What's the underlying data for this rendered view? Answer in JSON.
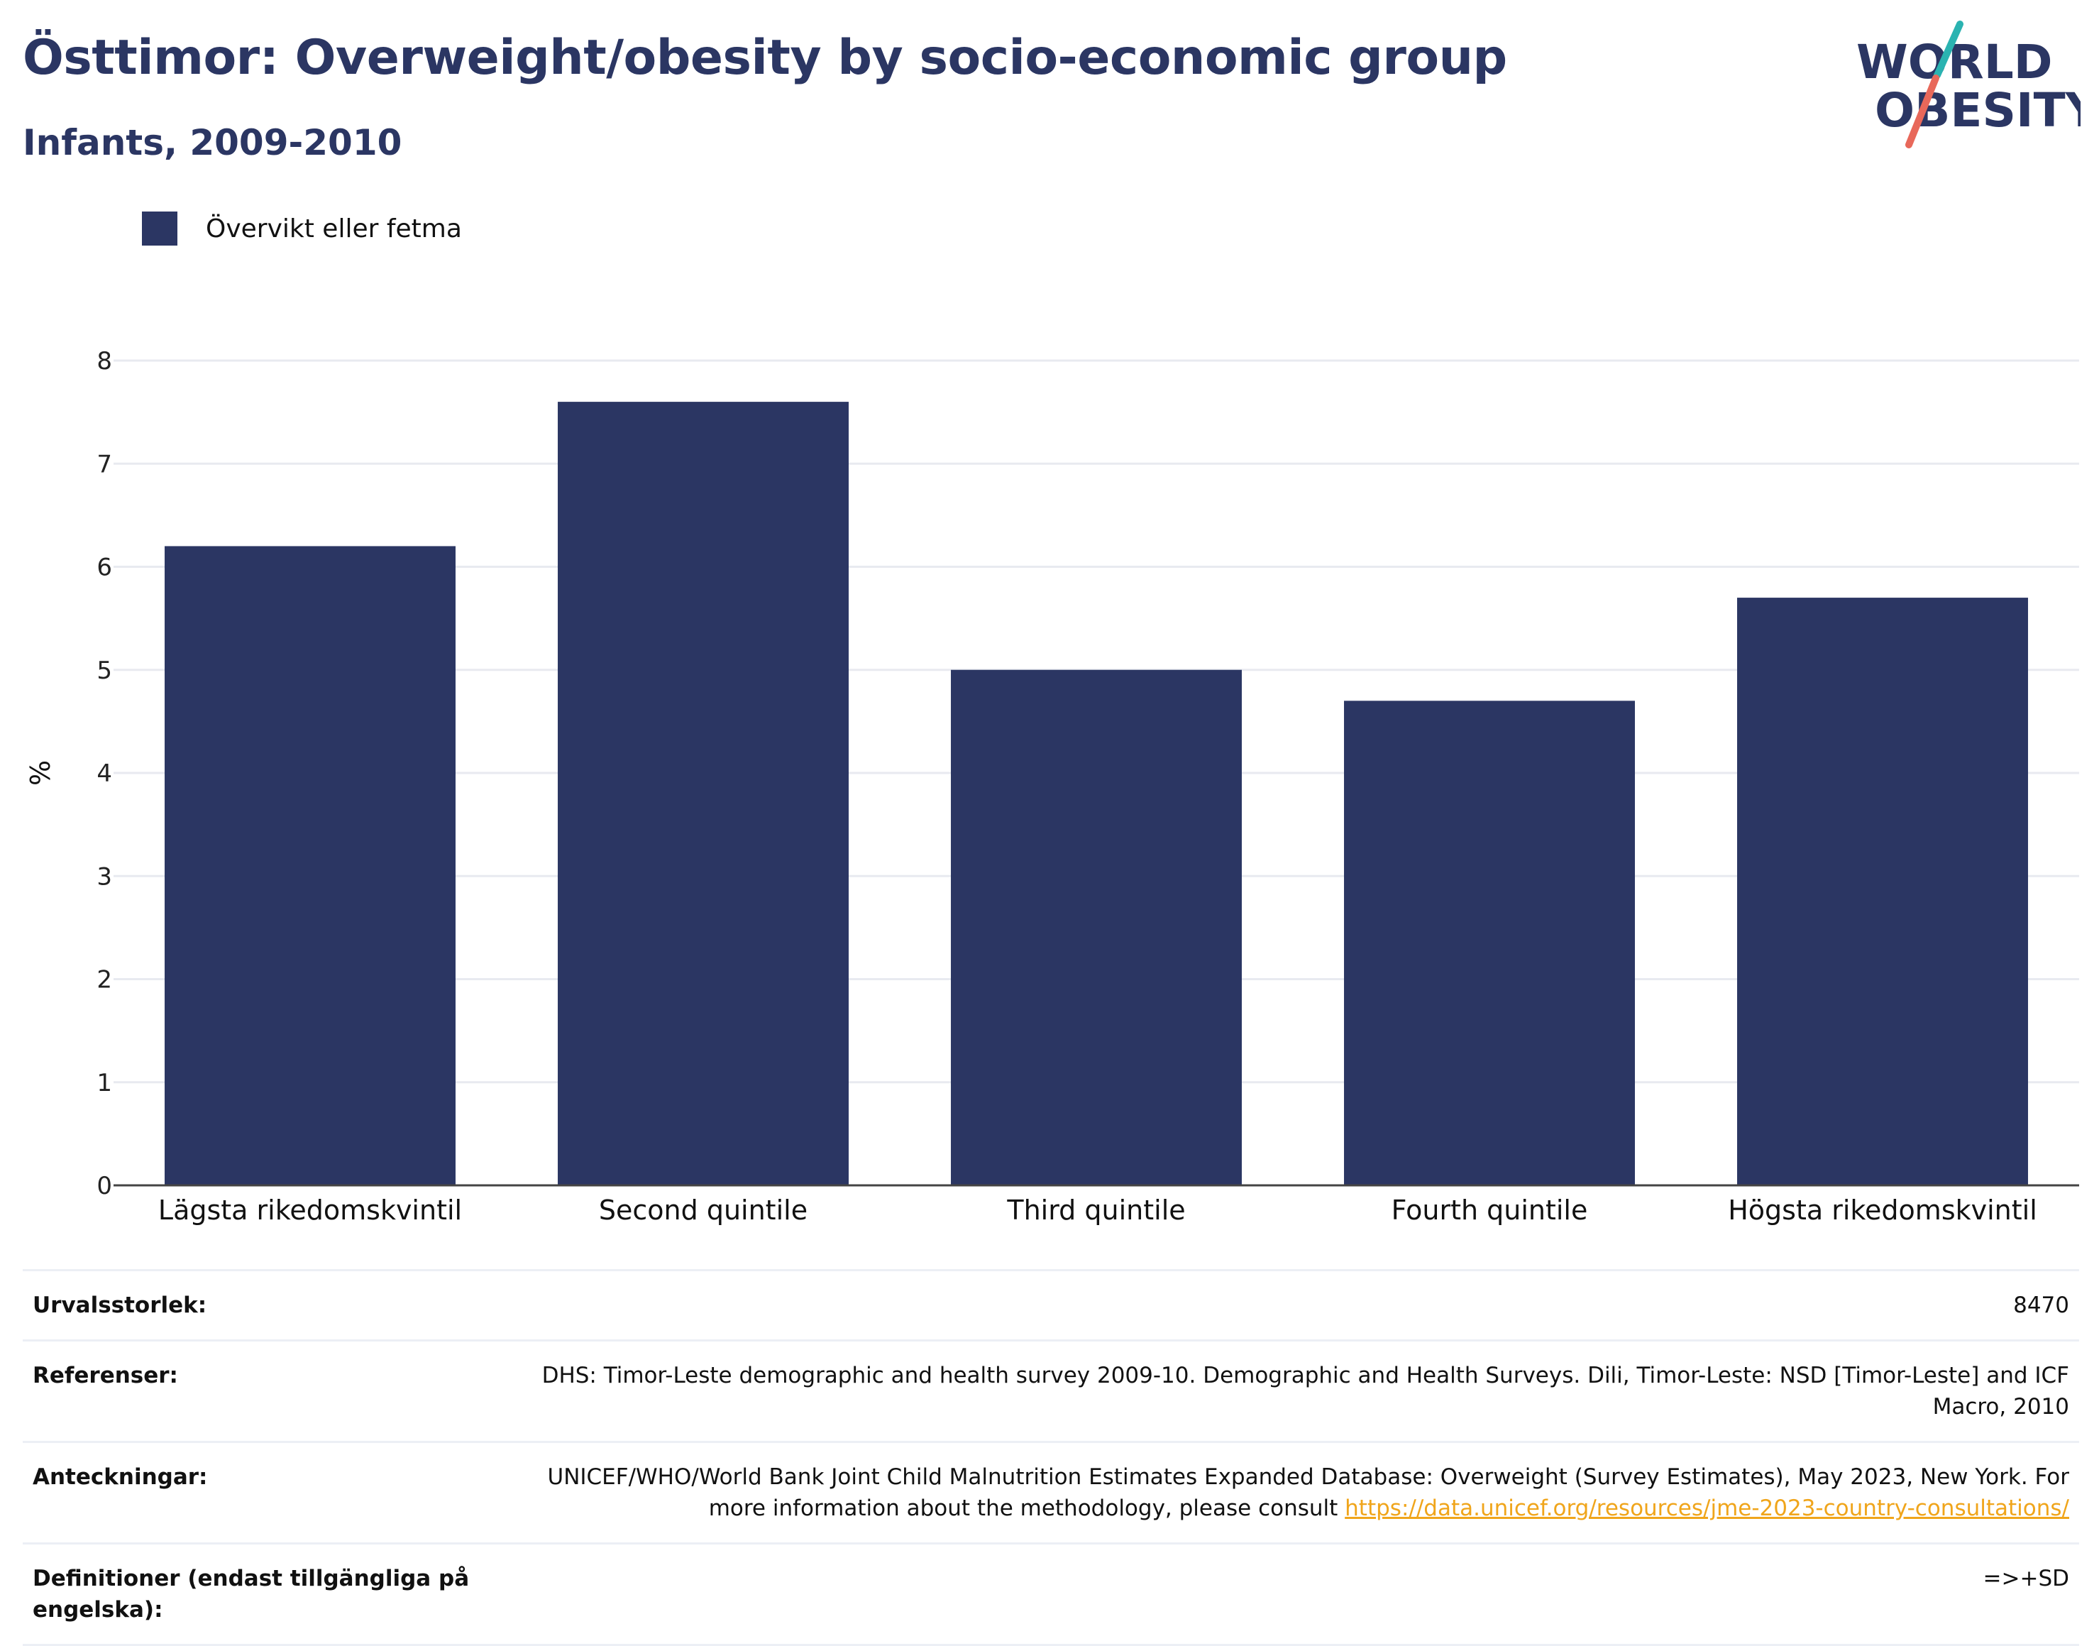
{
  "header": {
    "title": "Östtimor: Overweight/obesity by socio-economic group",
    "subtitle": "Infants, 2009-2010"
  },
  "logo": {
    "line1": "WORLD",
    "line2": "OBESITY",
    "colors": {
      "text": "#2b3663",
      "slash_teal": "#2ab3b1",
      "slash_coral": "#e8685a"
    }
  },
  "colors": {
    "bar": "#2b3663",
    "grid": "#e8eaf0",
    "axis": "#444444",
    "link": "#f0a51b"
  },
  "chart_data": {
    "type": "bar",
    "categories": [
      "Lägsta rikedomskvintil",
      "Second quintile",
      "Third quintile",
      "Fourth quintile",
      "Högsta rikedomskvintil"
    ],
    "series": [
      {
        "name": "Övervikt eller fetma",
        "values": [
          6.2,
          7.6,
          5.0,
          4.7,
          5.7
        ]
      }
    ],
    "ylabel": "%",
    "xlabel": "",
    "ylim": [
      0,
      8
    ],
    "yticks": [
      0,
      1,
      2,
      3,
      4,
      5,
      6,
      7,
      8
    ],
    "grid": true,
    "legend_position": "top-left"
  },
  "info": [
    {
      "key": "Urvalsstorlek:",
      "value": "8470"
    },
    {
      "key": "Referenser:",
      "value": "DHS: Timor-Leste demographic and health survey 2009-10. Demographic and Health Surveys. Dili, Timor-Leste: NSD [Timor-Leste] and ICF Macro, 2010"
    },
    {
      "key": "Anteckningar:",
      "value": "UNICEF/WHO/World Bank Joint Child Malnutrition Estimates Expanded Database: Overweight (Survey Estimates), May 2023, New York. For more information about the methodology, please consult ",
      "link": "https://data.unicef.org/resources/jme-2023-country-consultations/"
    },
    {
      "key": "Definitioner (endast tillgängliga på engelska):",
      "value": "=>+SD"
    }
  ]
}
